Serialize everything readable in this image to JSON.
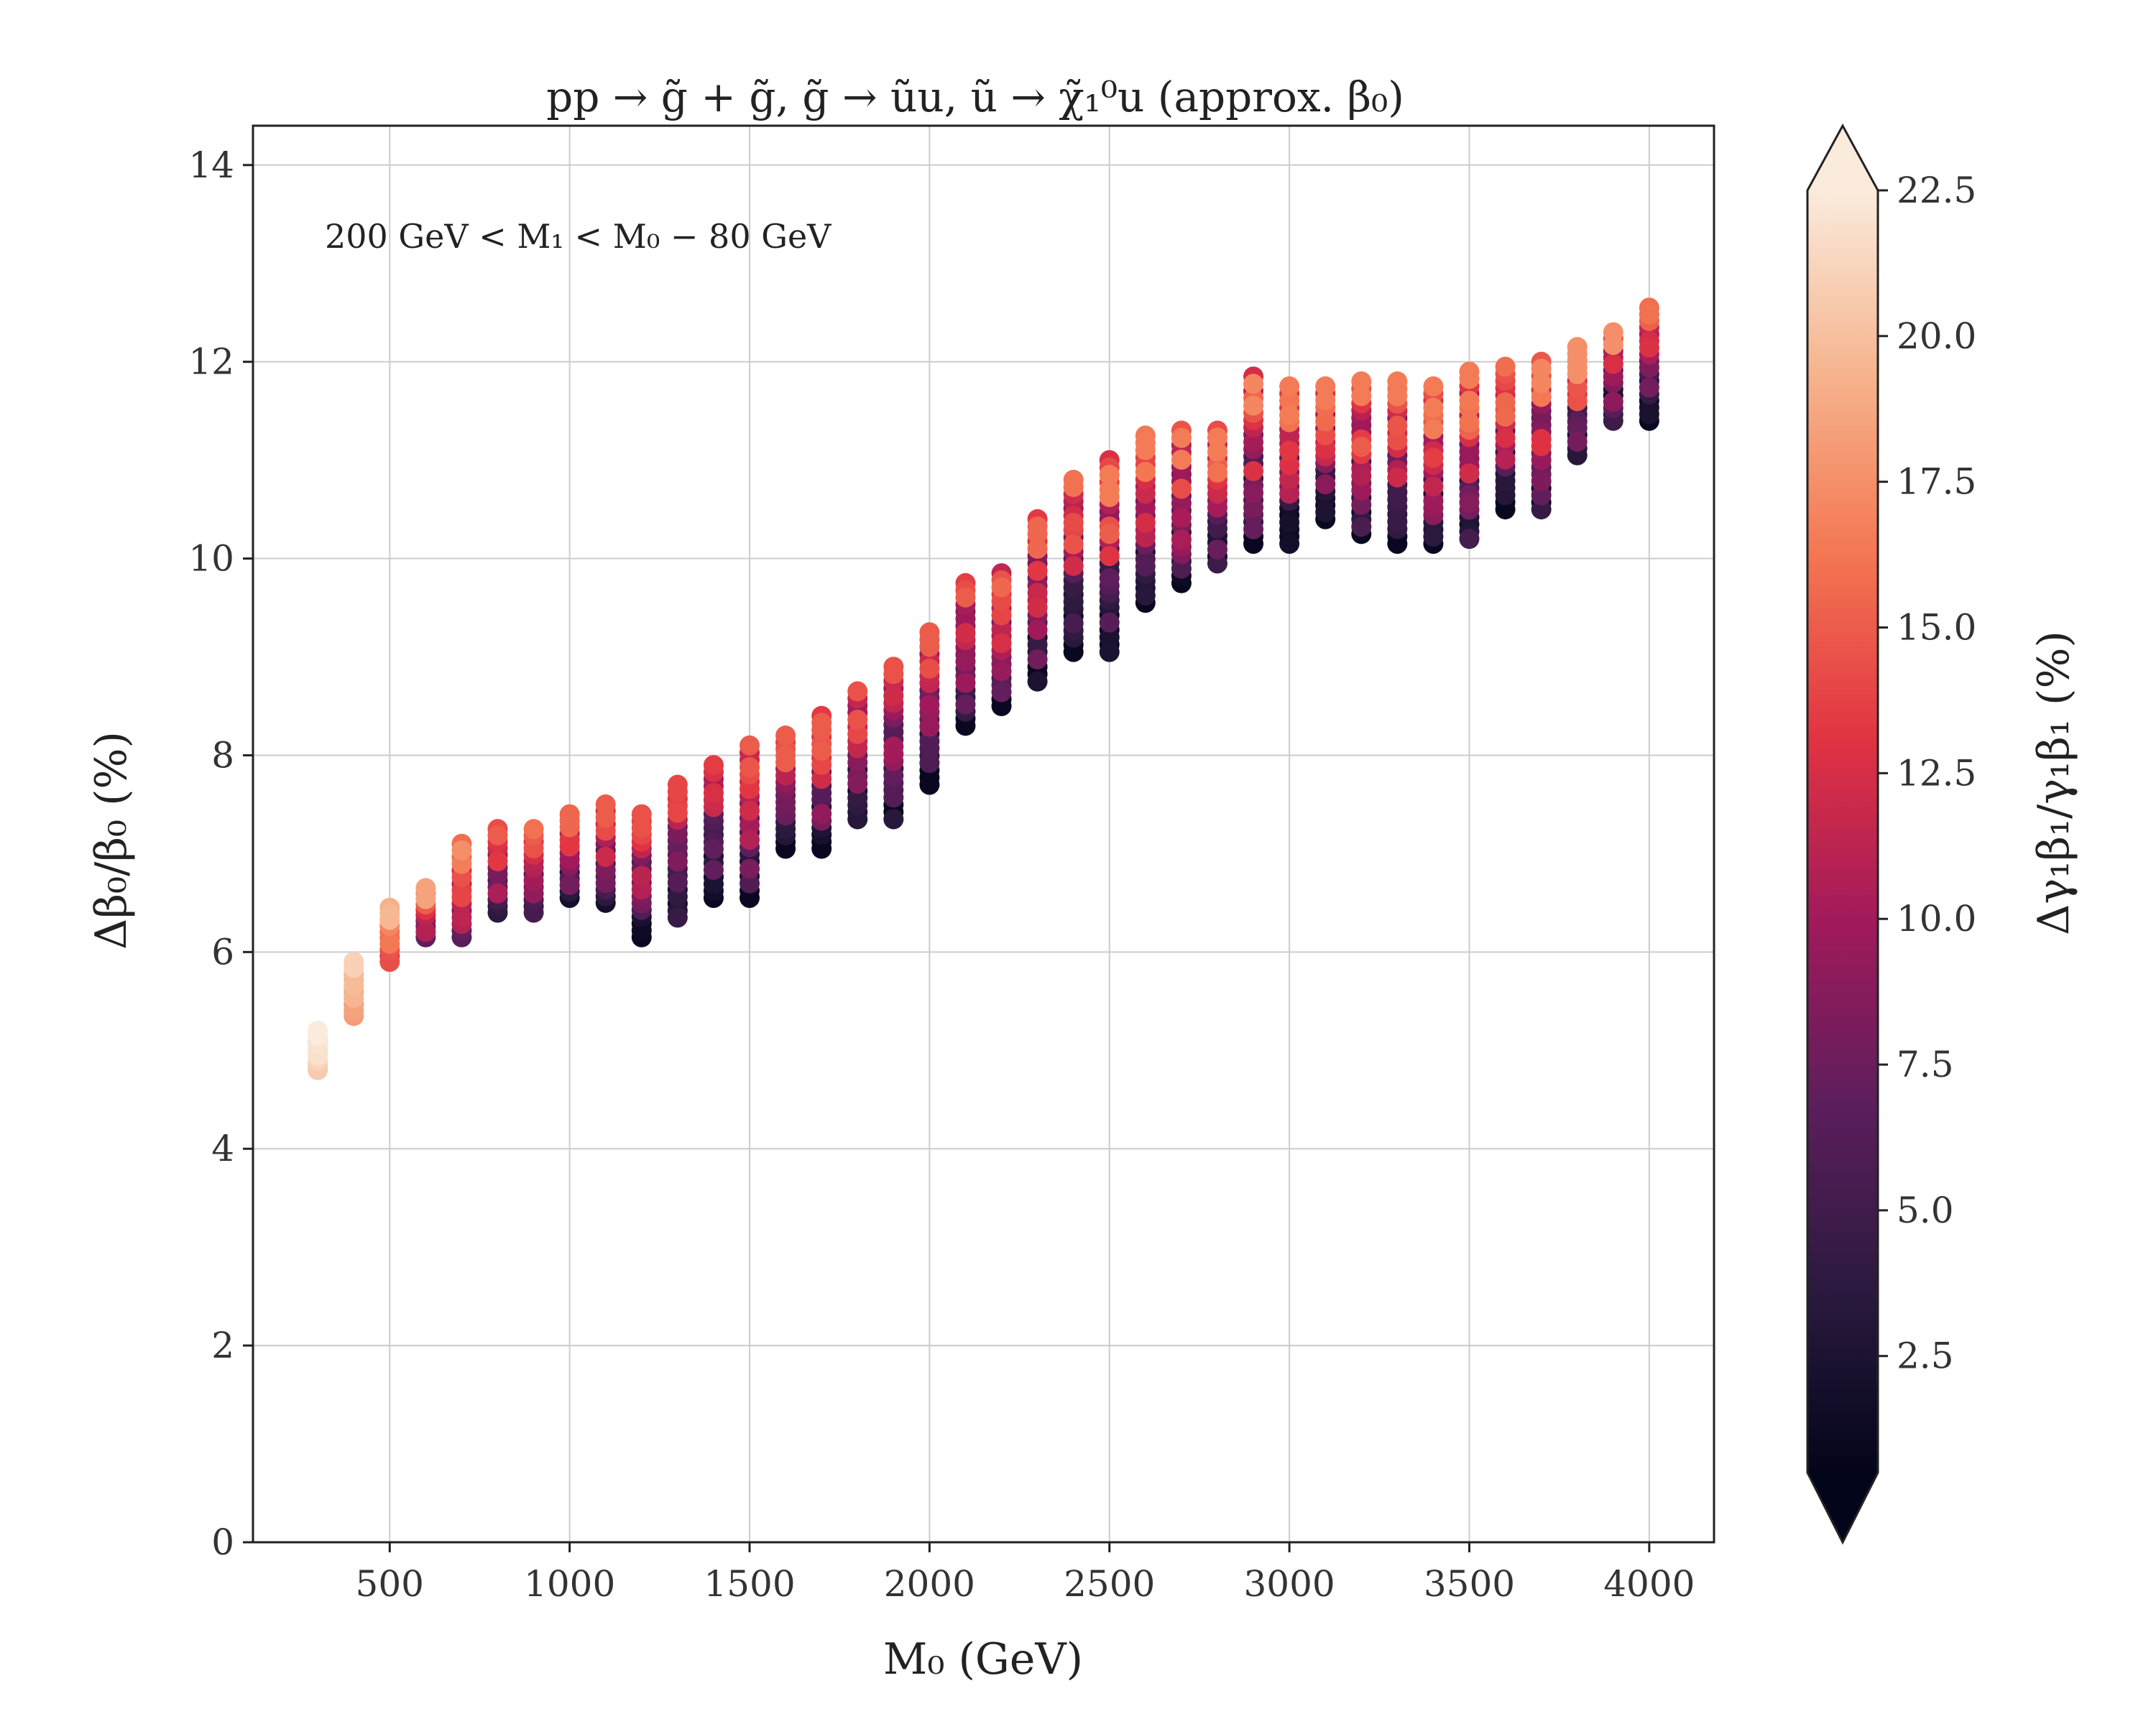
{
  "chart_data": {
    "type": "scatter",
    "title": "pp → g̃ + g̃, g̃ → ũu, ũ → χ̃₁⁰u (approx. β₀)",
    "annotation": "200 GeV < M₁ < M₀ − 80 GeV",
    "xlabel": "M₀ (GeV)",
    "ylabel": "Δβ₀/β₀ (%)",
    "colorbar_label": "Δγ₁β₁/γ₁β₁ (%)",
    "xlim": [
      120,
      4180
    ],
    "ylim": [
      0,
      14.4
    ],
    "x_ticks": [
      500,
      1000,
      1500,
      2000,
      2500,
      3000,
      3500,
      4000
    ],
    "y_ticks": [
      0,
      2,
      4,
      6,
      8,
      10,
      12,
      14
    ],
    "x_tick_labels": [
      "500",
      "1000",
      "1500",
      "2000",
      "2500",
      "3000",
      "3500",
      "4000"
    ],
    "y_tick_labels": [
      "0",
      "2",
      "4",
      "6",
      "8",
      "10",
      "12",
      "14"
    ],
    "colorbar": {
      "range": [
        0.5,
        22.5
      ],
      "ticks": [
        2.5,
        5.0,
        7.5,
        10.0,
        12.5,
        15.0,
        17.5,
        20.0,
        22.5
      ],
      "tick_labels": [
        "2.5",
        "5.0",
        "7.5",
        "10.0",
        "12.5",
        "15.0",
        "17.5",
        "20.0",
        "22.5"
      ],
      "extend": "both",
      "colormap": [
        "#03051a",
        "#2b1a3f",
        "#5c1e5c",
        "#a11a5b",
        "#e13342",
        "#f37651",
        "#f6b48e",
        "#faebdd"
      ]
    },
    "grid": true,
    "series": [
      {
        "columns": [
          {
            "x": 300,
            "ymin": 4.8,
            "ymax": 5.2,
            "cmin": 20.5,
            "cmax": 22.5
          },
          {
            "x": 400,
            "ymin": 5.35,
            "ymax": 5.9,
            "cmin": 17.5,
            "cmax": 21.0
          },
          {
            "x": 500,
            "ymin": 5.9,
            "ymax": 6.45,
            "cmin": 13.0,
            "cmax": 19.5
          },
          {
            "x": 600,
            "ymin": 6.15,
            "ymax": 6.65,
            "cmin": 7.0,
            "cmax": 18.5
          },
          {
            "x": 700,
            "ymin": 6.15,
            "ymax": 7.1,
            "cmin": 6.5,
            "cmax": 17.5
          },
          {
            "x": 800,
            "ymin": 6.4,
            "ymax": 7.25,
            "cmin": 3.5,
            "cmax": 16.5
          },
          {
            "x": 900,
            "ymin": 6.4,
            "ymax": 7.25,
            "cmin": 3.0,
            "cmax": 16.0
          },
          {
            "x": 1000,
            "ymin": 6.55,
            "ymax": 7.4,
            "cmin": 2.0,
            "cmax": 15.5
          },
          {
            "x": 1100,
            "ymin": 6.5,
            "ymax": 7.5,
            "cmin": 2.0,
            "cmax": 15.0
          },
          {
            "x": 1200,
            "ymin": 6.15,
            "ymax": 7.4,
            "cmin": 1.0,
            "cmax": 14.5
          },
          {
            "x": 1300,
            "ymin": 6.35,
            "ymax": 7.7,
            "cmin": 1.0,
            "cmax": 14.0
          },
          {
            "x": 1400,
            "ymin": 6.55,
            "ymax": 7.9,
            "cmin": 1.0,
            "cmax": 13.5
          },
          {
            "x": 1500,
            "ymin": 6.55,
            "ymax": 8.1,
            "cmin": 1.0,
            "cmax": 15.0
          },
          {
            "x": 1600,
            "ymin": 7.05,
            "ymax": 8.2,
            "cmin": 1.0,
            "cmax": 15.0
          },
          {
            "x": 1700,
            "ymin": 7.05,
            "ymax": 8.4,
            "cmin": 1.0,
            "cmax": 15.0
          },
          {
            "x": 1800,
            "ymin": 7.35,
            "ymax": 8.65,
            "cmin": 1.0,
            "cmax": 14.5
          },
          {
            "x": 1900,
            "ymin": 7.35,
            "ymax": 8.9,
            "cmin": 1.0,
            "cmax": 14.5
          },
          {
            "x": 2000,
            "ymin": 7.7,
            "ymax": 9.25,
            "cmin": 1.0,
            "cmax": 15.0
          },
          {
            "x": 2100,
            "ymin": 8.3,
            "ymax": 9.75,
            "cmin": 1.0,
            "cmax": 15.0
          },
          {
            "x": 2200,
            "ymin": 8.5,
            "ymax": 9.85,
            "cmin": 1.0,
            "cmax": 15.5
          },
          {
            "x": 2300,
            "ymin": 8.75,
            "ymax": 10.4,
            "cmin": 1.0,
            "cmax": 15.5
          },
          {
            "x": 2400,
            "ymin": 9.05,
            "ymax": 10.8,
            "cmin": 1.0,
            "cmax": 16.0
          },
          {
            "x": 2500,
            "ymin": 9.05,
            "ymax": 11.0,
            "cmin": 1.0,
            "cmax": 16.5
          },
          {
            "x": 2600,
            "ymin": 9.55,
            "ymax": 11.25,
            "cmin": 1.0,
            "cmax": 16.5
          },
          {
            "x": 2700,
            "ymin": 9.75,
            "ymax": 11.3,
            "cmin": 1.0,
            "cmax": 16.5
          },
          {
            "x": 2800,
            "ymin": 9.95,
            "ymax": 11.3,
            "cmin": 1.0,
            "cmax": 16.5
          },
          {
            "x": 2900,
            "ymin": 10.15,
            "ymax": 11.85,
            "cmin": 1.0,
            "cmax": 17.0
          },
          {
            "x": 3000,
            "ymin": 10.15,
            "ymax": 11.75,
            "cmin": 1.0,
            "cmax": 16.5
          },
          {
            "x": 3100,
            "ymin": 10.4,
            "ymax": 11.75,
            "cmin": 1.0,
            "cmax": 16.5
          },
          {
            "x": 3200,
            "ymin": 10.25,
            "ymax": 11.8,
            "cmin": 1.0,
            "cmax": 16.5
          },
          {
            "x": 3300,
            "ymin": 10.15,
            "ymax": 11.8,
            "cmin": 1.0,
            "cmax": 16.5
          },
          {
            "x": 3400,
            "ymin": 10.15,
            "ymax": 11.75,
            "cmin": 1.0,
            "cmax": 16.5
          },
          {
            "x": 3500,
            "ymin": 10.2,
            "ymax": 11.9,
            "cmin": 1.0,
            "cmax": 16.5
          },
          {
            "x": 3600,
            "ymin": 10.5,
            "ymax": 11.95,
            "cmin": 1.0,
            "cmax": 16.5
          },
          {
            "x": 3700,
            "ymin": 10.5,
            "ymax": 12.0,
            "cmin": 1.0,
            "cmax": 17.0
          },
          {
            "x": 3800,
            "ymin": 11.05,
            "ymax": 12.15,
            "cmin": 1.0,
            "cmax": 17.5
          },
          {
            "x": 3900,
            "ymin": 11.4,
            "ymax": 12.3,
            "cmin": 1.0,
            "cmax": 17.5
          },
          {
            "x": 4000,
            "ymin": 11.4,
            "ymax": 12.55,
            "cmin": 1.0,
            "cmax": 16.0
          }
        ]
      }
    ]
  }
}
